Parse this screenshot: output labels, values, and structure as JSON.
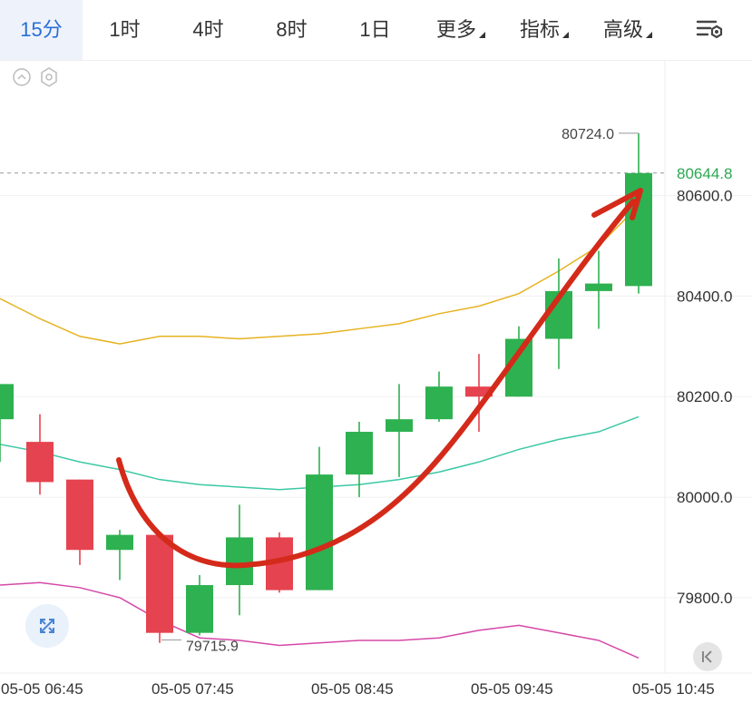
{
  "tabs": [
    {
      "label": "15分",
      "active": true,
      "dropdown": false
    },
    {
      "label": "1时",
      "active": false,
      "dropdown": false
    },
    {
      "label": "4时",
      "active": false,
      "dropdown": false
    },
    {
      "label": "8时",
      "active": false,
      "dropdown": false
    },
    {
      "label": "1日",
      "active": false,
      "dropdown": false
    },
    {
      "label": "更多",
      "active": false,
      "dropdown": true
    },
    {
      "label": "指标",
      "active": false,
      "dropdown": true
    },
    {
      "label": "高级",
      "active": false,
      "dropdown": true
    }
  ],
  "toolbar": {
    "settings_icon": "chart-settings-icon",
    "collapse_icon": "chevron-up-circle-icon",
    "indicator_icon": "hexagon-settings-icon",
    "expand_icon": "expand-arrows-icon",
    "jump_latest_icon": "jump-to-latest-icon"
  },
  "colors": {
    "up": "#2eb150",
    "down": "#e5434f",
    "ma_upper": "#e6b320",
    "ma_middle": "#3cc8a5",
    "ma_lower": "#d548a8",
    "annotation_arrow": "#d42a1a",
    "current_price": "#2aa851",
    "active_tab": "#2a6fd6"
  },
  "chart_data": {
    "type": "candlestick",
    "interval": "15分",
    "y_axis": {
      "ticks": [
        "80600.0",
        "80400.0",
        "80200.0",
        "80000.0",
        "79800.0"
      ],
      "range": [
        79650,
        80870
      ]
    },
    "x_axis": {
      "ticks": [
        "05-05 06:45",
        "05-05 07:45",
        "05-05 08:45",
        "05-05 09:45",
        "05-05 10:45"
      ]
    },
    "current_price": {
      "label": "80644.8",
      "value": 80644.8
    },
    "annotations": [
      {
        "text": "80724.0",
        "value": 80724.0
      },
      {
        "text": "79715.9",
        "value": 79715.9
      }
    ],
    "candles": [
      {
        "open": 80155,
        "high": 80225,
        "low": 80070,
        "close": 80225
      },
      {
        "open": 80110,
        "high": 80165,
        "low": 80005,
        "close": 80030
      },
      {
        "open": 80035,
        "high": 80035,
        "low": 79865,
        "close": 79895
      },
      {
        "open": 79895,
        "high": 79935,
        "low": 79835,
        "close": 79925
      },
      {
        "open": 79925,
        "high": 79925,
        "low": 79710,
        "close": 79730
      },
      {
        "open": 79730,
        "high": 79845,
        "low": 79725,
        "close": 79825
      },
      {
        "open": 79825,
        "high": 79985,
        "low": 79765,
        "close": 79920
      },
      {
        "open": 79920,
        "high": 79930,
        "low": 79810,
        "close": 79815
      },
      {
        "open": 79815,
        "high": 80100,
        "low": 79815,
        "close": 80045
      },
      {
        "open": 80045,
        "high": 80150,
        "low": 80000,
        "close": 80130
      },
      {
        "open": 80130,
        "high": 80225,
        "low": 80040,
        "close": 80155
      },
      {
        "open": 80155,
        "high": 80250,
        "low": 80150,
        "close": 80220
      },
      {
        "open": 80220,
        "high": 80285,
        "low": 80130,
        "close": 80200
      },
      {
        "open": 80200,
        "high": 80340,
        "low": 80200,
        "close": 80315
      },
      {
        "open": 80315,
        "high": 80475,
        "low": 80255,
        "close": 80410
      },
      {
        "open": 80410,
        "high": 80490,
        "low": 80335,
        "close": 80425
      },
      {
        "open": 80420,
        "high": 80724,
        "low": 80405,
        "close": 80644.8
      }
    ],
    "lines": [
      {
        "role": "upper",
        "values": [
          80395,
          80355,
          80320,
          80305,
          80320,
          80320,
          80315,
          80320,
          80325,
          80335,
          80345,
          80365,
          80380,
          80405,
          80450,
          80500,
          80580
        ]
      },
      {
        "role": "middle",
        "values": [
          80105,
          80090,
          80070,
          80055,
          80035,
          80025,
          80020,
          80015,
          80020,
          80025,
          80035,
          80050,
          80070,
          80095,
          80115,
          80130,
          80160
        ]
      },
      {
        "role": "lower",
        "values": [
          79825,
          79830,
          79820,
          79800,
          79755,
          79720,
          79715,
          79705,
          79710,
          79715,
          79715,
          79720,
          79735,
          79745,
          79730,
          79715,
          79680
        ]
      }
    ]
  }
}
